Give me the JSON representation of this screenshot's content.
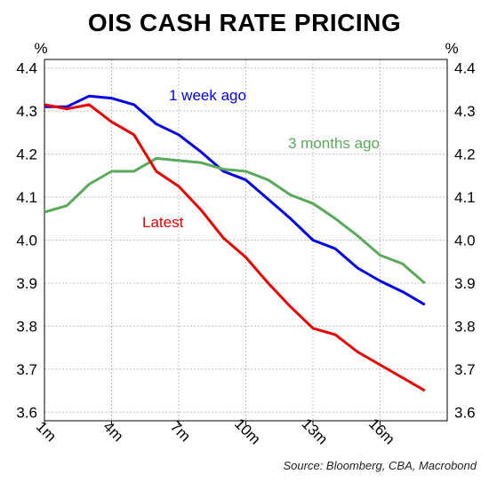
{
  "chart_data": {
    "type": "line",
    "title": "OIS CASH RATE PRICING",
    "ylabel_left": "%",
    "ylabel_right": "%",
    "ylim": [
      3.58,
      4.42
    ],
    "yticks": [
      "4.4",
      "4.3",
      "4.2",
      "4.1",
      "4.0",
      "3.9",
      "3.8",
      "3.7",
      "3.6"
    ],
    "ytick_values": [
      4.4,
      4.3,
      4.2,
      4.1,
      4.0,
      3.9,
      3.8,
      3.7,
      3.6
    ],
    "xlim": [
      1,
      19
    ],
    "xticks": [
      "1m",
      "4m",
      "7m",
      "10m",
      "13m",
      "16m"
    ],
    "xtick_values": [
      1,
      4,
      7,
      10,
      13,
      16
    ],
    "grid": true,
    "x": [
      1,
      2,
      3,
      4,
      5,
      6,
      7,
      8,
      9,
      10,
      11,
      12,
      13,
      14,
      15,
      16,
      17,
      18,
      19
    ],
    "series": [
      {
        "name": "1 week ago",
        "color": "#0000e6",
        "values": [
          4.31,
          4.31,
          4.335,
          4.33,
          4.315,
          4.27,
          4.245,
          4.205,
          4.16,
          4.14,
          4.095,
          4.05,
          4.0,
          3.98,
          3.935,
          3.905,
          3.88,
          3.85,
          null
        ]
      },
      {
        "name": "3 months ago",
        "color": "#5aa85a",
        "values": [
          4.065,
          4.08,
          4.13,
          4.16,
          4.16,
          4.19,
          4.185,
          4.18,
          4.165,
          4.16,
          4.14,
          4.105,
          4.085,
          4.05,
          4.01,
          3.965,
          3.945,
          3.9,
          null
        ]
      },
      {
        "name": "Latest",
        "color": "#e60000",
        "values": [
          4.315,
          4.305,
          4.315,
          4.275,
          4.245,
          4.16,
          4.125,
          4.07,
          4.005,
          3.96,
          3.9,
          3.845,
          3.795,
          3.78,
          3.74,
          3.71,
          3.68,
          3.65,
          null
        ]
      }
    ],
    "annotations": [
      {
        "text": "1 week ago",
        "color": "#0000e6"
      },
      {
        "text": "3 months ago",
        "color": "#5aa85a"
      },
      {
        "text": "Latest",
        "color": "#e60000"
      }
    ],
    "source": "Source: Bloomberg, CBA, Macrobond"
  }
}
